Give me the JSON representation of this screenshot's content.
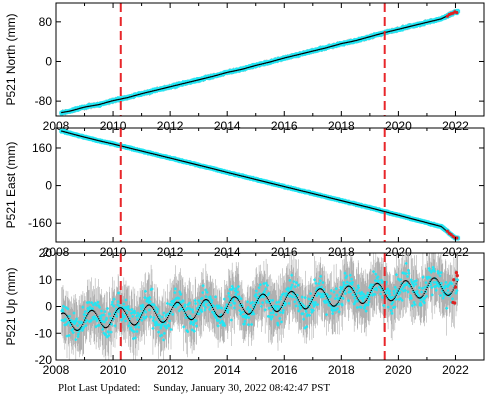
{
  "chart_data": [
    {
      "type": "scatter",
      "ylabel": "P521 North (mm)",
      "xlim": [
        2008,
        2023
      ],
      "ylim": [
        -110,
        118
      ],
      "yticks": [
        -80,
        0,
        80
      ],
      "xticks": [
        2008,
        2010,
        2012,
        2014,
        2016,
        2018,
        2020,
        2022
      ],
      "vlines": [
        2010.27,
        2019.52
      ],
      "x": [
        2008.2,
        2008.5,
        2009.0,
        2009.5,
        2010.0,
        2010.5,
        2011.0,
        2011.5,
        2012.0,
        2012.5,
        2013.0,
        2013.5,
        2014.0,
        2014.5,
        2015.0,
        2015.5,
        2016.0,
        2016.5,
        2017.0,
        2017.5,
        2018.0,
        2018.5,
        2019.0,
        2019.5,
        2020.0,
        2020.5,
        2021.0,
        2021.5,
        2022.0
      ],
      "y": [
        -103,
        -100,
        -92,
        -87,
        -79,
        -73,
        -65,
        -58,
        -51,
        -44,
        -37,
        -30,
        -22,
        -16,
        -8,
        -1,
        7,
        14,
        21,
        28,
        36,
        42,
        50,
        58,
        65,
        72,
        79,
        86,
        100
      ],
      "error": 5
    },
    {
      "type": "scatter",
      "ylabel": "P521 East (mm)",
      "xlim": [
        2008,
        2023
      ],
      "ylim": [
        -240,
        245
      ],
      "yticks": [
        -160,
        0,
        160
      ],
      "xticks": [
        2008,
        2010,
        2012,
        2014,
        2016,
        2018,
        2020,
        2022
      ],
      "vlines": [
        2010.27,
        2019.52
      ],
      "x": [
        2008.2,
        2008.5,
        2009.0,
        2009.5,
        2010.0,
        2010.5,
        2011.0,
        2011.5,
        2012.0,
        2012.5,
        2013.0,
        2013.5,
        2014.0,
        2014.5,
        2015.0,
        2015.5,
        2016.0,
        2016.5,
        2017.0,
        2017.5,
        2018.0,
        2018.5,
        2019.0,
        2019.5,
        2020.0,
        2020.5,
        2021.0,
        2021.5,
        2022.0
      ],
      "y": [
        232,
        222,
        206,
        191,
        177,
        162,
        147,
        132,
        117,
        102,
        87,
        72,
        56,
        41,
        26,
        11,
        -4,
        -19,
        -34,
        -49,
        -64,
        -79,
        -94,
        -110,
        -126,
        -142,
        -158,
        -174,
        -224
      ],
      "error": 5
    },
    {
      "type": "scatter",
      "ylabel": "P521 Up (mm)",
      "xlim": [
        2008,
        2023
      ],
      "ylim": [
        -20,
        20
      ],
      "yticks": [
        -20,
        -10,
        0,
        10,
        20
      ],
      "xticks": [
        2008,
        2010,
        2012,
        2014,
        2016,
        2018,
        2020,
        2022
      ],
      "vlines": [
        2010.27,
        2019.52
      ],
      "trend": [
        -6,
        8
      ],
      "seasonal_amplitude": 3.5,
      "noise": 5,
      "error": 8
    }
  ],
  "footer": {
    "label": "Plot Last Updated:",
    "date": "Sunday, January 30, 2022 08:42:47 PST"
  }
}
